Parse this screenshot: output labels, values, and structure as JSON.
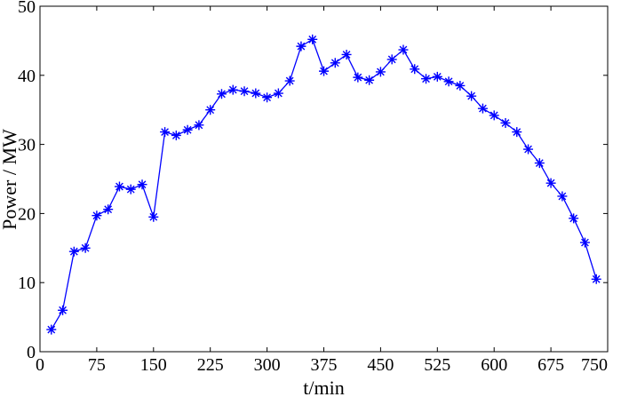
{
  "chart_data": {
    "type": "line",
    "title": "",
    "xlabel": "t/min",
    "ylabel": "Power / MW",
    "xlim": [
      0,
      750
    ],
    "ylim": [
      0,
      50
    ],
    "xticks": [
      0,
      75,
      150,
      225,
      300,
      375,
      450,
      525,
      600,
      675,
      750
    ],
    "yticks": [
      0,
      10,
      20,
      30,
      40,
      50
    ],
    "grid": false,
    "marker": "asterisk",
    "color": "#0000ff",
    "series": [
      {
        "x": [
          15,
          30,
          45,
          60,
          75,
          90,
          105,
          120,
          135,
          150,
          165,
          180,
          195,
          210,
          225,
          240,
          255,
          270,
          285,
          300,
          315,
          330,
          345,
          360,
          375,
          390,
          405,
          420,
          435,
          450,
          465,
          480,
          495,
          510,
          525,
          540,
          555,
          570,
          585,
          600,
          615,
          630,
          645,
          660,
          675,
          690,
          705,
          720,
          735
        ],
        "values": [
          3.2,
          6.0,
          14.5,
          15.0,
          19.7,
          20.6,
          23.9,
          23.5,
          24.2,
          19.5,
          31.8,
          31.3,
          32.1,
          32.8,
          35.0,
          37.3,
          37.9,
          37.7,
          37.4,
          36.8,
          37.4,
          39.2,
          44.2,
          45.2,
          40.6,
          41.8,
          43.0,
          39.7,
          39.3,
          40.5,
          42.3,
          43.7,
          40.9,
          39.5,
          39.8,
          39.1,
          38.5,
          37.0,
          35.2,
          34.2,
          33.1,
          31.8,
          29.3,
          27.3,
          24.4,
          22.5,
          19.3,
          15.8,
          10.5
        ]
      }
    ]
  }
}
